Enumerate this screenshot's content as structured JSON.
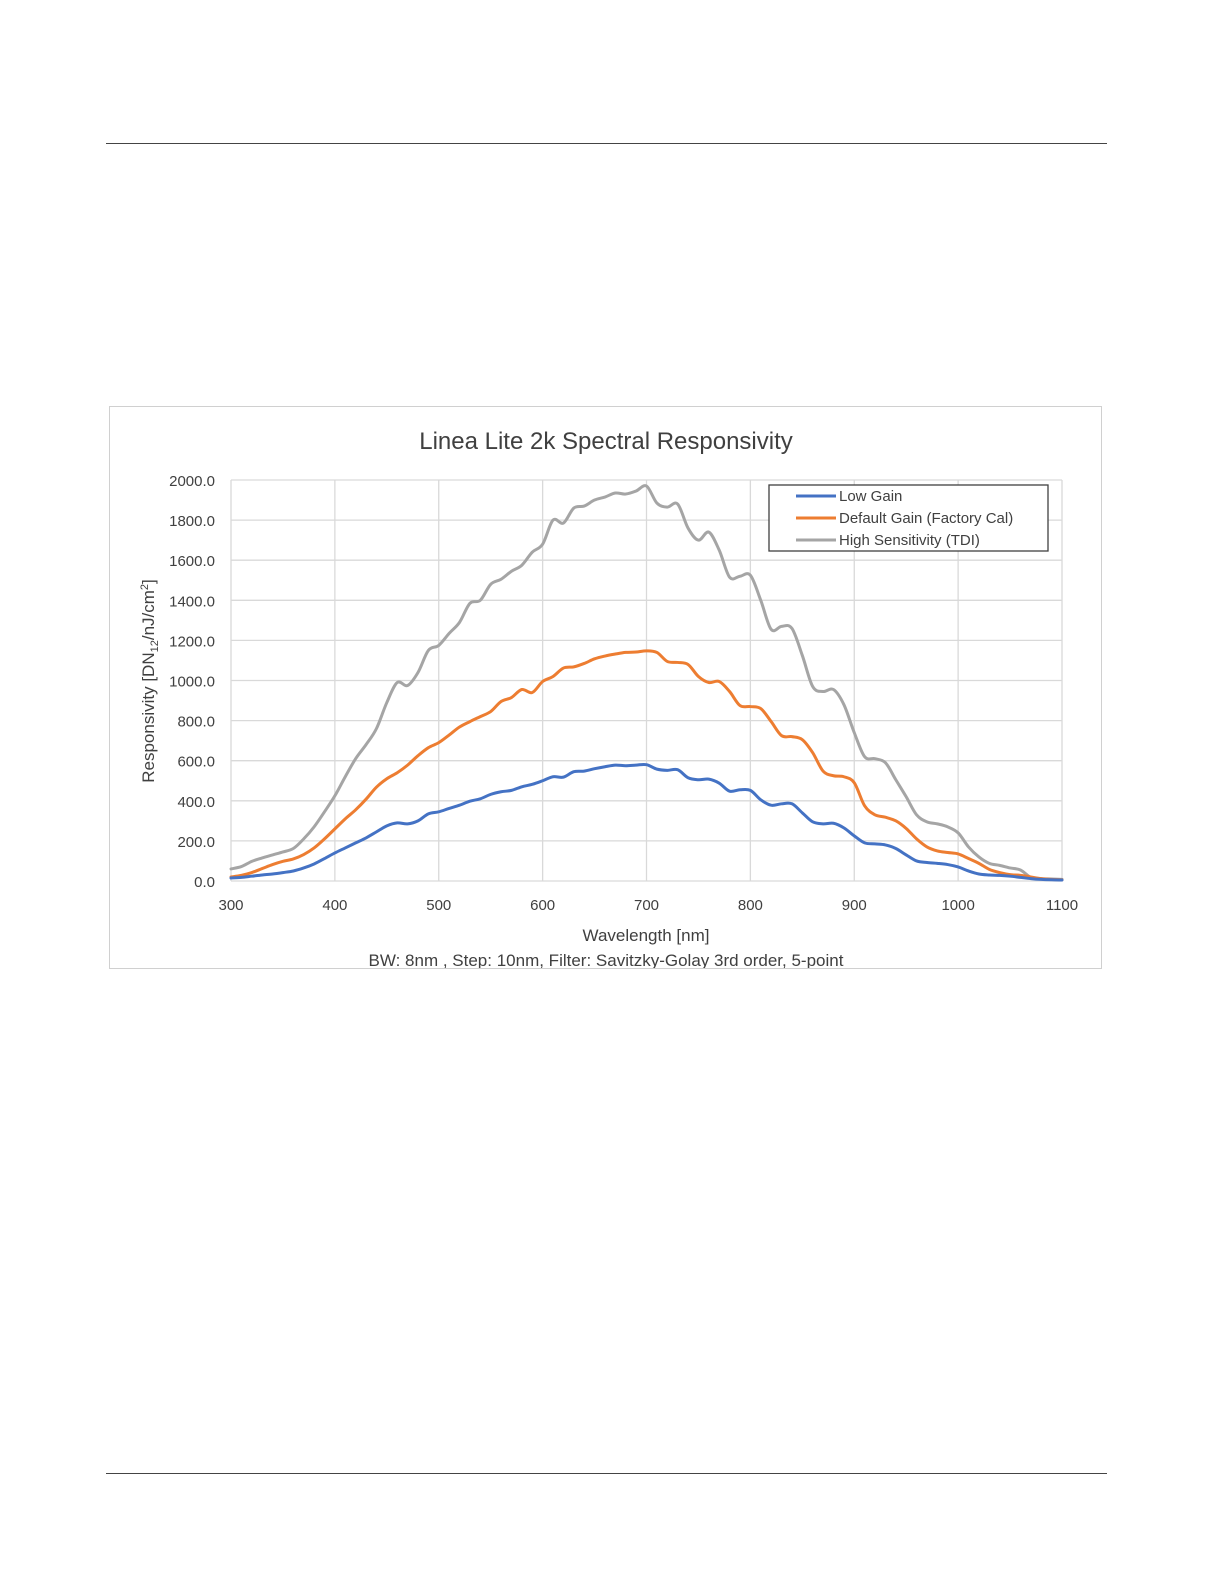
{
  "chart_data": {
    "type": "line",
    "title": "Linea Lite 2k Spectral Responsivity",
    "xlabel": "Wavelength [nm]",
    "ylabel": "Responsivity [DN12/nJ/cm2]",
    "ylabel_parts": {
      "pre": "Responsivity [DN",
      "sub": "12",
      "mid": "/nJ/cm",
      "sup": "2",
      "post": "]"
    },
    "footnote": "BW: 8nm , Step: 10nm, Filter: Savitzky-Golay 3rd order, 5-point",
    "xlim": [
      300,
      1100
    ],
    "ylim": [
      0,
      2000
    ],
    "x_ticks": [
      "300",
      "400",
      "500",
      "600",
      "700",
      "800",
      "900",
      "1000",
      "1100"
    ],
    "y_ticks": [
      "0.0",
      "200.0",
      "400.0",
      "600.0",
      "800.0",
      "1000.0",
      "1200.0",
      "1400.0",
      "1600.0",
      "1800.0",
      "2000.0"
    ],
    "grid": true,
    "legend_position": "top-right",
    "x": [
      300,
      310,
      320,
      330,
      340,
      350,
      360,
      370,
      380,
      390,
      400,
      410,
      420,
      430,
      440,
      450,
      460,
      470,
      480,
      490,
      500,
      510,
      520,
      530,
      540,
      550,
      560,
      570,
      580,
      590,
      600,
      610,
      620,
      630,
      640,
      650,
      660,
      670,
      680,
      690,
      700,
      710,
      720,
      730,
      740,
      750,
      760,
      770,
      780,
      790,
      800,
      810,
      820,
      830,
      840,
      850,
      860,
      870,
      880,
      890,
      900,
      910,
      920,
      930,
      940,
      950,
      960,
      970,
      980,
      990,
      1000,
      1010,
      1020,
      1030,
      1040,
      1050,
      1060,
      1070,
      1080,
      1090,
      1100
    ],
    "series": [
      {
        "name": "Low Gain",
        "color": "#4472c4",
        "values": [
          15,
          18,
          24,
          30,
          35,
          42,
          50,
          65,
          85,
          112,
          140,
          165,
          190,
          215,
          245,
          275,
          290,
          285,
          300,
          335,
          345,
          362,
          378,
          398,
          410,
          432,
          445,
          452,
          470,
          482,
          500,
          520,
          518,
          545,
          548,
          560,
          570,
          578,
          575,
          578,
          580,
          558,
          552,
          555,
          515,
          505,
          508,
          488,
          448,
          455,
          452,
          405,
          378,
          385,
          385,
          340,
          295,
          285,
          288,
          265,
          225,
          190,
          185,
          180,
          162,
          130,
          100,
          92,
          88,
          82,
          70,
          50,
          35,
          30,
          28,
          24,
          18,
          12,
          8,
          6,
          5
        ]
      },
      {
        "name": "Default Gain (Factory Cal)",
        "color": "#ed7d31",
        "values": [
          20,
          28,
          42,
          62,
          82,
          98,
          110,
          132,
          165,
          210,
          260,
          310,
          355,
          408,
          468,
          510,
          540,
          578,
          625,
          665,
          690,
          728,
          768,
          795,
          820,
          845,
          895,
          915,
          955,
          940,
          995,
          1020,
          1062,
          1068,
          1085,
          1108,
          1122,
          1132,
          1140,
          1142,
          1148,
          1140,
          1095,
          1090,
          1080,
          1020,
          990,
          995,
          945,
          875,
          870,
          860,
          795,
          725,
          720,
          705,
          640,
          548,
          525,
          520,
          490,
          375,
          330,
          318,
          300,
          262,
          210,
          170,
          150,
          142,
          135,
          112,
          88,
          58,
          42,
          32,
          28,
          20,
          12,
          8,
          6
        ]
      },
      {
        "name": "High Sensitivity (TDI)",
        "color": "#a5a5a5",
        "values": [
          60,
          72,
          98,
          115,
          130,
          145,
          162,
          210,
          270,
          345,
          425,
          520,
          610,
          680,
          760,
          890,
          990,
          975,
          1040,
          1150,
          1175,
          1235,
          1290,
          1385,
          1400,
          1480,
          1505,
          1545,
          1575,
          1640,
          1680,
          1800,
          1785,
          1860,
          1870,
          1900,
          1915,
          1935,
          1930,
          1945,
          1970,
          1885,
          1865,
          1880,
          1760,
          1700,
          1740,
          1650,
          1515,
          1520,
          1525,
          1400,
          1255,
          1270,
          1260,
          1125,
          970,
          945,
          955,
          880,
          740,
          620,
          610,
          590,
          505,
          420,
          330,
          295,
          285,
          270,
          240,
          170,
          120,
          88,
          78,
          65,
          55,
          18,
          12,
          10,
          8
        ]
      }
    ]
  }
}
